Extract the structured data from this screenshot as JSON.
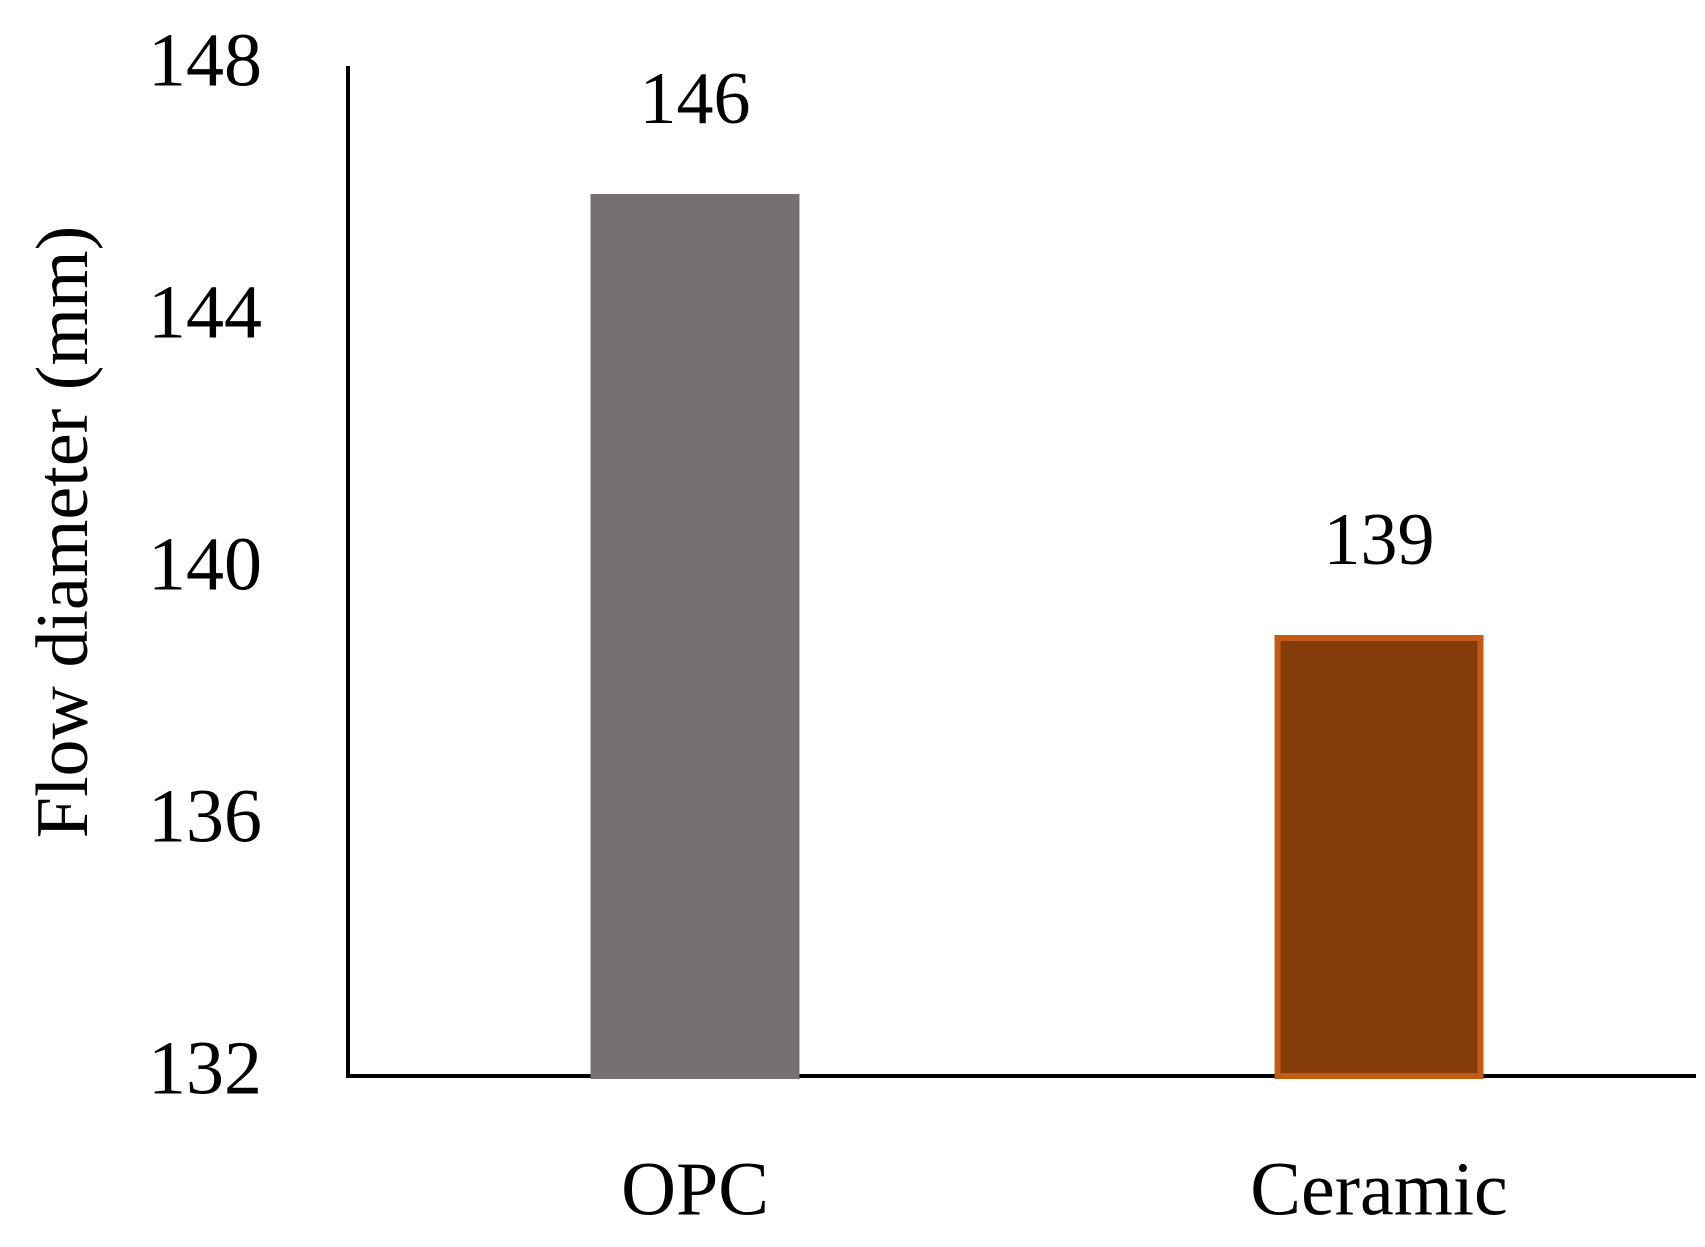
{
  "chart_data": {
    "type": "bar",
    "y_axis_label": "Flow diameter (mm)",
    "categories": [
      "OPC",
      "Ceramic"
    ],
    "values": [
      146,
      139
    ],
    "colors": [
      "#767171",
      "#843c0c"
    ],
    "edge_colors": [
      "#767171",
      "#c55a11"
    ],
    "ylim": [
      132,
      148
    ],
    "yticks": [
      132,
      136,
      140,
      144,
      148
    ],
    "grid": false
  }
}
